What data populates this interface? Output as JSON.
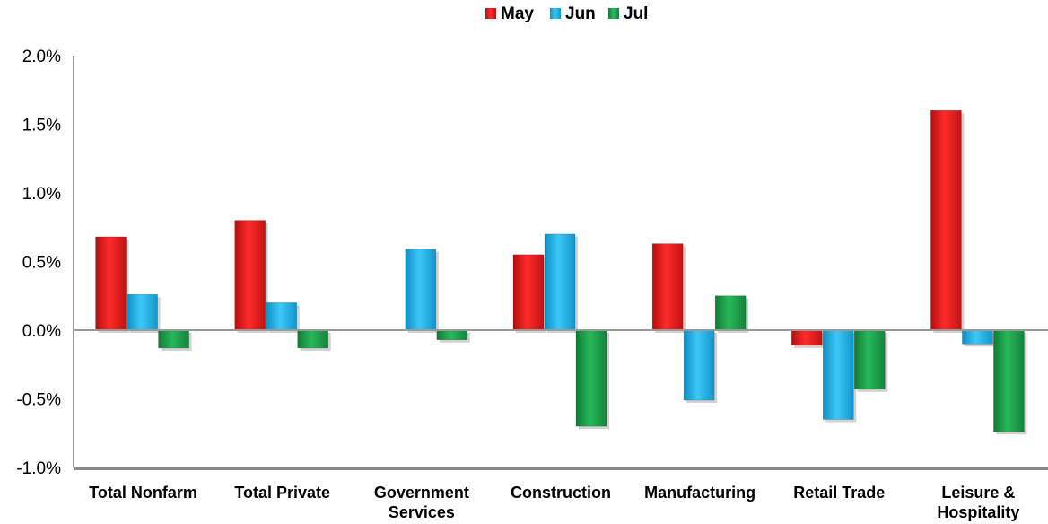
{
  "chart_data": {
    "type": "bar",
    "categories": [
      [
        "Total Nonfarm"
      ],
      [
        "Total Private"
      ],
      [
        "Government",
        "Services"
      ],
      [
        "Construction"
      ],
      [
        "Manufacturing"
      ],
      [
        "Retail Trade"
      ],
      [
        "Leisure &",
        "Hospitality"
      ]
    ],
    "series": [
      {
        "name": "May",
        "color": "#e41f1f",
        "values": [
          0.68,
          0.8,
          null,
          0.55,
          0.63,
          -0.11,
          1.6
        ]
      },
      {
        "name": "Jun",
        "color": "#1fb4ea",
        "values": [
          0.26,
          0.2,
          0.59,
          0.7,
          -0.51,
          -0.65,
          -0.1
        ]
      },
      {
        "name": "Jul",
        "color": "#1fa34a",
        "values": [
          -0.13,
          -0.13,
          -0.07,
          -0.7,
          0.25,
          -0.43,
          -0.74
        ]
      }
    ],
    "ylim": [
      -1.0,
      2.0
    ],
    "yticks": [
      2.0,
      1.5,
      1.0,
      0.5,
      0.0,
      -0.5,
      -1.0
    ],
    "ytick_labels": [
      "2.0%",
      "1.5%",
      "1.0%",
      "0.5%",
      "0.0%",
      "-0.5%",
      "-1.0%"
    ],
    "legend_position": "top-center",
    "grid": false,
    "title": "",
    "xlabel": "",
    "ylabel": ""
  }
}
